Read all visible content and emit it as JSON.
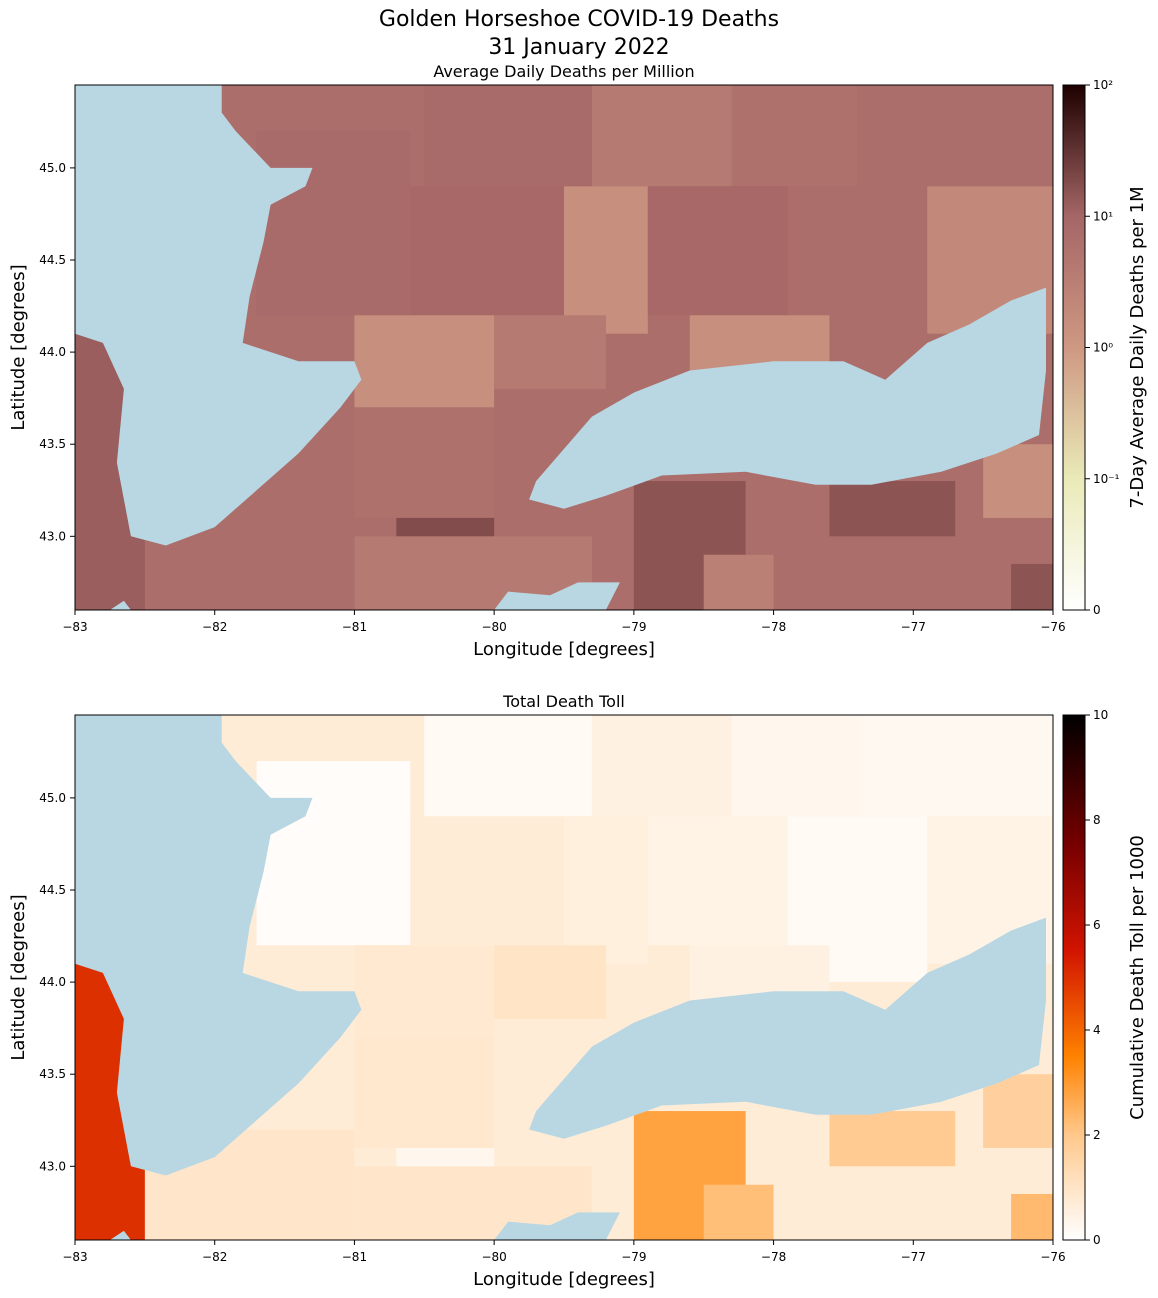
{
  "figure": {
    "title_line1": "Golden Horseshoe COVID-19 Deaths",
    "title_line2": "31 January 2022"
  },
  "colors": {
    "lake": "#b8d7e3",
    "nodata": "#ffffff"
  },
  "chart_data": [
    {
      "type": "heatmap",
      "title": "Average Daily Deaths per Million",
      "xlabel": "Longitude [degrees]",
      "ylabel": "Latitude [degrees]",
      "xlim": [
        -83,
        -76
      ],
      "ylim": [
        42.6,
        45.45
      ],
      "xticks": [
        -83,
        -82,
        -81,
        -80,
        -79,
        -78,
        -77,
        -76
      ],
      "xtick_labels": [
        "−83",
        "−82",
        "−81",
        "−80",
        "−79",
        "−78",
        "−77",
        "−76"
      ],
      "yticks": [
        43.0,
        43.5,
        44.0,
        44.5,
        45.0
      ],
      "ytick_labels": [
        "43.0",
        "43.5",
        "44.0",
        "44.5",
        "45.0"
      ],
      "colorbar": {
        "label": "7-Day Average Daily Deaths per 1M",
        "scale": "symlog",
        "range": [
          0,
          100
        ],
        "tick_values": [
          0,
          0.1,
          1,
          10,
          100
        ],
        "tick_labels": [
          "0",
          "10⁻¹",
          "10⁰",
          "10¹",
          "10²"
        ],
        "colormap": "pink_r"
      },
      "regions": [
        {
          "lon": [
            -80.5,
            -79.3
          ],
          "lat": [
            44.9,
            45.45
          ],
          "value": 8
        },
        {
          "lon": [
            -79.3,
            -78.3
          ],
          "lat": [
            44.9,
            45.45
          ],
          "value": 4
        },
        {
          "lon": [
            -78.3,
            -77.4
          ],
          "lat": [
            44.9,
            45.45
          ],
          "value": 6
        },
        {
          "lon": [
            -77.4,
            -76.0
          ],
          "lat": [
            44.9,
            45.45
          ],
          "value": 7
        },
        {
          "lon": [
            -81.7,
            -80.6
          ],
          "lat": [
            44.2,
            45.2
          ],
          "value": 8
        },
        {
          "lon": [
            -80.6,
            -79.5
          ],
          "lat": [
            44.2,
            44.9
          ],
          "value": 9
        },
        {
          "lon": [
            -79.5,
            -78.9
          ],
          "lat": [
            44.1,
            44.9
          ],
          "value": 1.5
        },
        {
          "lon": [
            -78.9,
            -77.9
          ],
          "lat": [
            44.2,
            44.9
          ],
          "value": 9
        },
        {
          "lon": [
            -77.9,
            -76.9
          ],
          "lat": [
            44.0,
            44.9
          ],
          "value": 7
        },
        {
          "lon": [
            -76.9,
            -76.0
          ],
          "lat": [
            44.1,
            44.9
          ],
          "value": 2
        },
        {
          "lon": [
            -81.0,
            -80.0
          ],
          "lat": [
            43.7,
            44.2
          ],
          "value": 1.5
        },
        {
          "lon": [
            -80.0,
            -79.2
          ],
          "lat": [
            43.8,
            44.2
          ],
          "value": 4
        },
        {
          "lon": [
            -78.6,
            -77.6
          ],
          "lat": [
            43.9,
            44.2
          ],
          "value": 1.5
        },
        {
          "lon": [
            -82.5,
            -81.0
          ],
          "lat": [
            42.6,
            43.2
          ],
          "value": 7
        },
        {
          "lon": [
            -81.0,
            -80.0
          ],
          "lat": [
            43.1,
            43.7
          ],
          "value": 6
        },
        {
          "lon": [
            -80.7,
            -80.0
          ],
          "lat": [
            42.9,
            43.1
          ],
          "value": 18
        },
        {
          "lon": [
            -81.0,
            -79.3
          ],
          "lat": [
            42.6,
            43.0
          ],
          "value": 4
        },
        {
          "lon": [
            -79.0,
            -78.2
          ],
          "lat": [
            42.6,
            43.3
          ],
          "value": 15
        },
        {
          "lon": [
            -78.5,
            -78.0
          ],
          "lat": [
            42.6,
            42.9
          ],
          "value": 3
        },
        {
          "lon": [
            -77.6,
            -76.7
          ],
          "lat": [
            43.0,
            43.3
          ],
          "value": 15
        },
        {
          "lon": [
            -76.5,
            -76.0
          ],
          "lat": [
            43.1,
            43.5
          ],
          "value": 1.5
        },
        {
          "lon": [
            -76.3,
            -76.0
          ],
          "lat": [
            42.6,
            42.85
          ],
          "value": 15
        },
        {
          "lon": [
            -83.0,
            -82.5
          ],
          "lat": [
            42.6,
            44.1
          ],
          "value": 12
        }
      ]
    },
    {
      "type": "heatmap",
      "title": "Total Death Toll",
      "xlabel": "Longitude [degrees]",
      "ylabel": "Latitude [degrees]",
      "xlim": [
        -83,
        -76
      ],
      "ylim": [
        42.6,
        45.45
      ],
      "xticks": [
        -83,
        -82,
        -81,
        -80,
        -79,
        -78,
        -77,
        -76
      ],
      "xtick_labels": [
        "−83",
        "−82",
        "−81",
        "−80",
        "−79",
        "−78",
        "−77",
        "−76"
      ],
      "yticks": [
        43.0,
        43.5,
        44.0,
        44.5,
        45.0
      ],
      "ytick_labels": [
        "43.0",
        "43.5",
        "44.0",
        "44.5",
        "45.0"
      ],
      "colorbar": {
        "label": "Cumulative Death Toll per 1000",
        "scale": "linear",
        "range": [
          0,
          10
        ],
        "tick_values": [
          0,
          2,
          4,
          6,
          8,
          10
        ],
        "tick_labels": [
          "0",
          "2",
          "4",
          "6",
          "8",
          "10"
        ],
        "colormap": "gist_heat_r"
      },
      "regions": [
        {
          "lon": [
            -80.5,
            -79.3
          ],
          "lat": [
            44.9,
            45.45
          ],
          "value": 0.2
        },
        {
          "lon": [
            -79.3,
            -78.3
          ],
          "lat": [
            44.9,
            45.45
          ],
          "value": 0.5
        },
        {
          "lon": [
            -78.3,
            -77.4
          ],
          "lat": [
            44.9,
            45.45
          ],
          "value": 0.3
        },
        {
          "lon": [
            -77.4,
            -76.0
          ],
          "lat": [
            44.9,
            45.45
          ],
          "value": 0.25
        },
        {
          "lon": [
            -81.7,
            -80.6
          ],
          "lat": [
            44.2,
            45.2
          ],
          "value": 0.1
        },
        {
          "lon": [
            -80.6,
            -79.5
          ],
          "lat": [
            44.2,
            44.9
          ],
          "value": 0.7
        },
        {
          "lon": [
            -79.5,
            -78.9
          ],
          "lat": [
            44.1,
            44.9
          ],
          "value": 0.6
        },
        {
          "lon": [
            -78.9,
            -77.9
          ],
          "lat": [
            44.2,
            44.9
          ],
          "value": 0.45
        },
        {
          "lon": [
            -77.9,
            -76.9
          ],
          "lat": [
            44.0,
            44.9
          ],
          "value": 0.2
        },
        {
          "lon": [
            -76.9,
            -76.0
          ],
          "lat": [
            44.1,
            44.9
          ],
          "value": 0.45
        },
        {
          "lon": [
            -81.0,
            -80.0
          ],
          "lat": [
            43.7,
            44.2
          ],
          "value": 0.8
        },
        {
          "lon": [
            -80.0,
            -79.2
          ],
          "lat": [
            43.8,
            44.2
          ],
          "value": 1.0
        },
        {
          "lon": [
            -78.6,
            -77.6
          ],
          "lat": [
            43.9,
            44.2
          ],
          "value": 0.5
        },
        {
          "lon": [
            -82.5,
            -81.0
          ],
          "lat": [
            42.6,
            43.2
          ],
          "value": 0.9
        },
        {
          "lon": [
            -81.0,
            -80.0
          ],
          "lat": [
            43.1,
            43.7
          ],
          "value": 0.85
        },
        {
          "lon": [
            -80.7,
            -80.0
          ],
          "lat": [
            42.9,
            43.1
          ],
          "value": 0.3
        },
        {
          "lon": [
            -81.0,
            -79.3
          ],
          "lat": [
            42.6,
            43.0
          ],
          "value": 0.9
        },
        {
          "lon": [
            -79.0,
            -78.2
          ],
          "lat": [
            42.6,
            43.3
          ],
          "value": 2.8
        },
        {
          "lon": [
            -78.5,
            -78.0
          ],
          "lat": [
            42.6,
            42.9
          ],
          "value": 2.2
        },
        {
          "lon": [
            -77.6,
            -76.7
          ],
          "lat": [
            43.0,
            43.3
          ],
          "value": 1.9
        },
        {
          "lon": [
            -76.5,
            -76.0
          ],
          "lat": [
            43.1,
            43.5
          ],
          "value": 1.7
        },
        {
          "lon": [
            -76.3,
            -76.0
          ],
          "lat": [
            42.6,
            42.85
          ],
          "value": 2.3
        },
        {
          "lon": [
            -83.0,
            -82.5
          ],
          "lat": [
            42.6,
            44.1
          ],
          "value": 5.0
        }
      ]
    }
  ]
}
